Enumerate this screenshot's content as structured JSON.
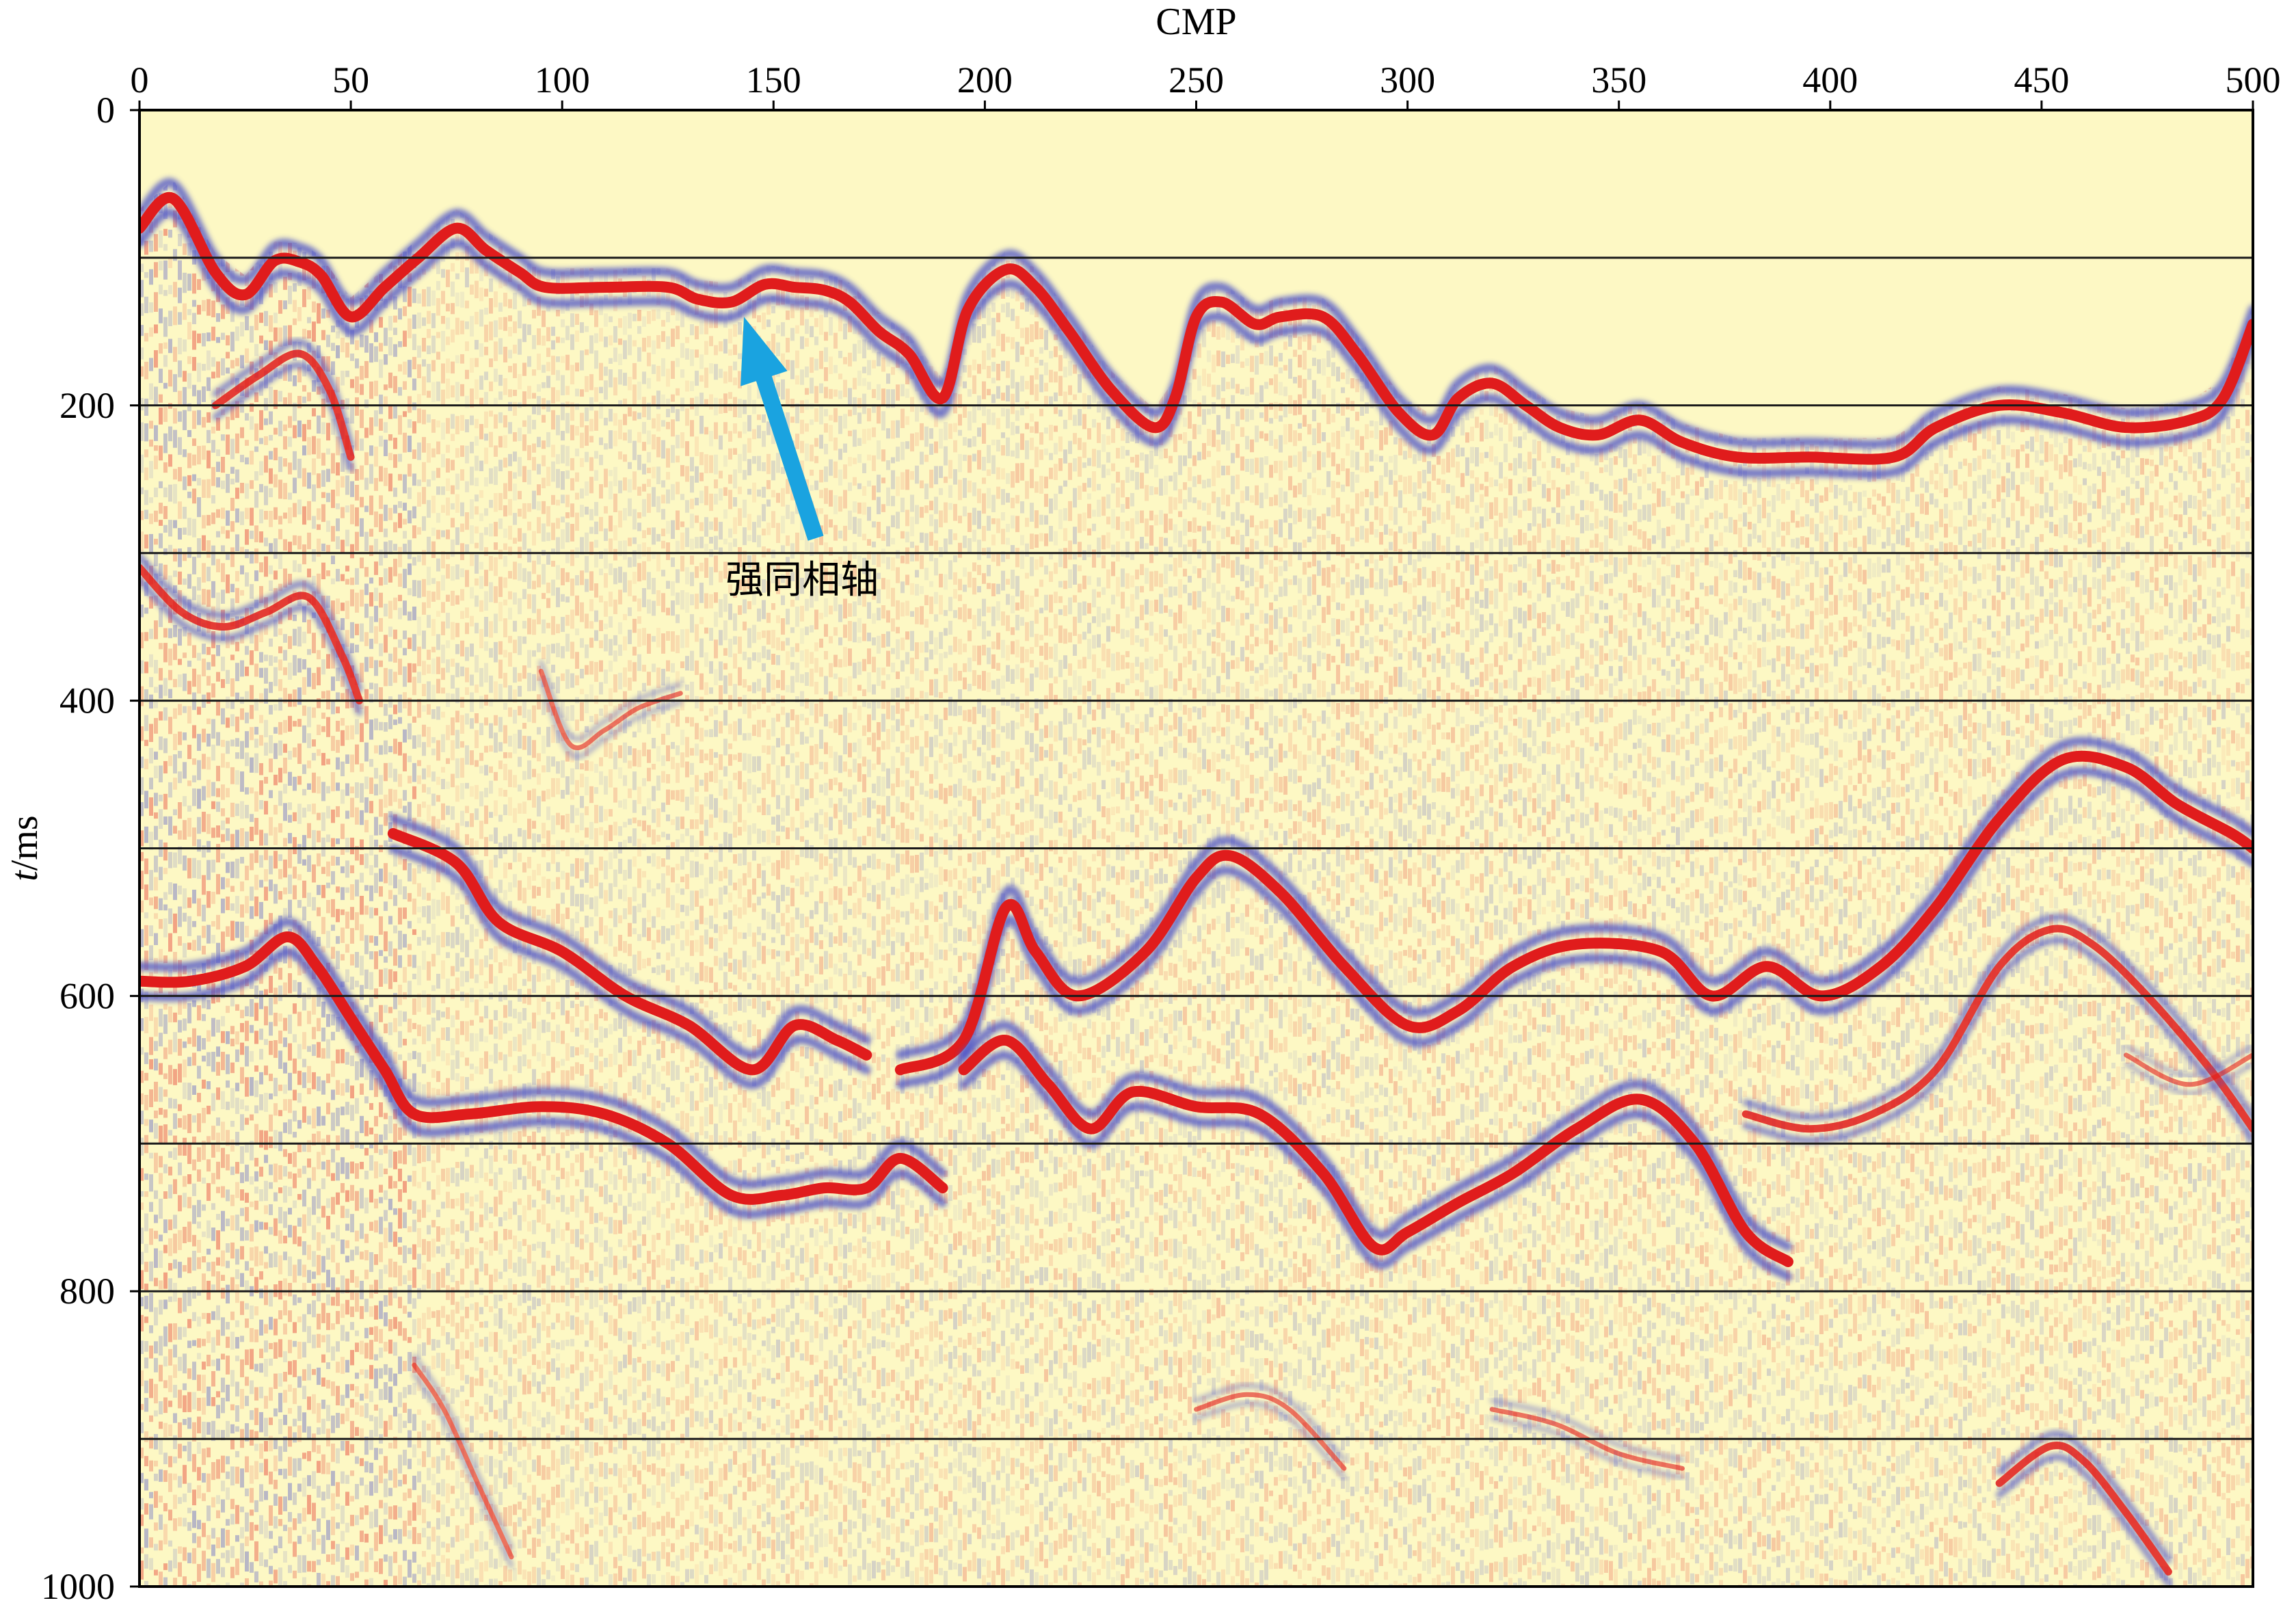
{
  "chart_data": {
    "type": "heatmap",
    "description_type": "seismic section (wiggle-density display)",
    "xlabel": "CMP",
    "ylabel": "t/ms",
    "ylabel_italic_part": "t",
    "ylabel_rest": "/ms",
    "xlim": [
      0,
      500
    ],
    "ylim": [
      0,
      1000
    ],
    "y_inverted": true,
    "x_axis_position": "top",
    "xticks": [
      0,
      50,
      100,
      150,
      200,
      250,
      300,
      350,
      400,
      450,
      500
    ],
    "yticks": [
      0,
      200,
      400,
      600,
      800,
      1000
    ],
    "grid": "horizontal lines every 100 ms",
    "grid_y": [
      100,
      200,
      300,
      400,
      500,
      600,
      700,
      800,
      900
    ],
    "colors": {
      "background": "#fdf8c4",
      "positive": "#e01c1c",
      "negative": "#4a4fc8",
      "grid": "#1a1a1a",
      "arrow": "#1aa3e0"
    },
    "annotation": {
      "text": "强同相轴",
      "arrow_tip": [
        143,
        140
      ],
      "arrow_tail": [
        160,
        290
      ]
    },
    "series": [
      {
        "role": "strong-event",
        "amplitude": "strong",
        "points": [
          [
            0,
            80
          ],
          [
            8,
            60
          ],
          [
            18,
            110
          ],
          [
            25,
            125
          ],
          [
            32,
            102
          ],
          [
            38,
            103
          ],
          [
            43,
            112
          ],
          [
            50,
            140
          ],
          [
            58,
            120
          ],
          [
            66,
            100
          ],
          [
            75,
            80
          ],
          [
            82,
            95
          ],
          [
            90,
            110
          ],
          [
            96,
            120
          ],
          [
            110,
            120
          ],
          [
            125,
            120
          ],
          [
            132,
            128
          ],
          [
            140,
            130
          ],
          [
            148,
            118
          ],
          [
            155,
            120
          ],
          [
            162,
            122
          ],
          [
            168,
            130
          ],
          [
            175,
            150
          ],
          [
            182,
            165
          ],
          [
            190,
            195
          ],
          [
            196,
            135
          ],
          [
            205,
            108
          ],
          [
            212,
            120
          ],
          [
            220,
            150
          ],
          [
            230,
            190
          ],
          [
            240,
            215
          ],
          [
            245,
            195
          ],
          [
            250,
            140
          ],
          [
            256,
            130
          ],
          [
            264,
            145
          ],
          [
            270,
            140
          ],
          [
            280,
            140
          ],
          [
            288,
            165
          ],
          [
            298,
            205
          ],
          [
            306,
            220
          ],
          [
            312,
            195
          ],
          [
            320,
            185
          ],
          [
            328,
            200
          ],
          [
            336,
            215
          ],
          [
            345,
            220
          ],
          [
            355,
            210
          ],
          [
            365,
            225
          ],
          [
            378,
            235
          ],
          [
            395,
            235
          ],
          [
            415,
            235
          ],
          [
            425,
            215
          ],
          [
            440,
            200
          ],
          [
            455,
            205
          ],
          [
            470,
            215
          ],
          [
            485,
            210
          ],
          [
            493,
            195
          ],
          [
            500,
            145
          ]
        ]
      },
      {
        "role": "secondary-event",
        "amplitude": "medium",
        "points": [
          [
            18,
            200
          ],
          [
            28,
            180
          ],
          [
            38,
            165
          ],
          [
            45,
            190
          ],
          [
            50,
            235
          ]
        ]
      },
      {
        "role": "event",
        "amplitude": "medium",
        "points": [
          [
            0,
            310
          ],
          [
            10,
            340
          ],
          [
            20,
            350
          ],
          [
            30,
            340
          ],
          [
            40,
            330
          ],
          [
            48,
            370
          ],
          [
            52,
            400
          ]
        ]
      },
      {
        "role": "event",
        "amplitude": "weak",
        "points": [
          [
            95,
            380
          ],
          [
            102,
            430
          ],
          [
            110,
            420
          ],
          [
            118,
            405
          ],
          [
            128,
            395
          ]
        ]
      },
      {
        "role": "event",
        "amplitude": "strong",
        "points": [
          [
            60,
            490
          ],
          [
            75,
            510
          ],
          [
            85,
            550
          ],
          [
            100,
            570
          ],
          [
            115,
            600
          ],
          [
            130,
            620
          ],
          [
            145,
            650
          ],
          [
            155,
            620
          ],
          [
            165,
            630
          ],
          [
            172,
            640
          ]
        ]
      },
      {
        "role": "event",
        "amplitude": "strong",
        "points": [
          [
            180,
            650
          ],
          [
            195,
            630
          ],
          [
            205,
            540
          ],
          [
            212,
            570
          ],
          [
            222,
            600
          ],
          [
            238,
            570
          ],
          [
            250,
            520
          ],
          [
            258,
            505
          ],
          [
            270,
            530
          ],
          [
            285,
            580
          ],
          [
            300,
            620
          ],
          [
            312,
            610
          ],
          [
            325,
            580
          ],
          [
            340,
            565
          ],
          [
            360,
            570
          ],
          [
            372,
            600
          ],
          [
            385,
            580
          ],
          [
            398,
            600
          ],
          [
            412,
            580
          ],
          [
            425,
            540
          ],
          [
            440,
            480
          ],
          [
            455,
            440
          ],
          [
            470,
            445
          ],
          [
            482,
            470
          ],
          [
            495,
            490
          ],
          [
            500,
            500
          ]
        ]
      },
      {
        "role": "event",
        "amplitude": "strong",
        "points": [
          [
            0,
            590
          ],
          [
            12,
            590
          ],
          [
            25,
            580
          ],
          [
            35,
            560
          ],
          [
            42,
            580
          ],
          [
            50,
            615
          ],
          [
            58,
            650
          ],
          [
            65,
            680
          ],
          [
            78,
            680
          ],
          [
            95,
            675
          ],
          [
            110,
            680
          ],
          [
            125,
            700
          ],
          [
            140,
            735
          ],
          [
            152,
            735
          ],
          [
            162,
            730
          ],
          [
            172,
            730
          ],
          [
            180,
            710
          ],
          [
            190,
            730
          ]
        ]
      },
      {
        "role": "event",
        "amplitude": "strong",
        "points": [
          [
            195,
            650
          ],
          [
            205,
            630
          ],
          [
            215,
            660
          ],
          [
            225,
            690
          ],
          [
            235,
            665
          ],
          [
            250,
            675
          ],
          [
            265,
            680
          ],
          [
            280,
            720
          ],
          [
            292,
            770
          ],
          [
            300,
            760
          ],
          [
            312,
            740
          ],
          [
            325,
            720
          ],
          [
            340,
            690
          ],
          [
            355,
            670
          ],
          [
            368,
            700
          ],
          [
            380,
            760
          ],
          [
            390,
            780
          ]
        ]
      },
      {
        "role": "event",
        "amplitude": "medium",
        "points": [
          [
            380,
            680
          ],
          [
            395,
            690
          ],
          [
            410,
            680
          ],
          [
            425,
            650
          ],
          [
            440,
            580
          ],
          [
            452,
            555
          ],
          [
            462,
            565
          ],
          [
            475,
            600
          ],
          [
            490,
            650
          ],
          [
            500,
            690
          ]
        ]
      },
      {
        "role": "event",
        "amplitude": "weak",
        "points": [
          [
            470,
            640
          ],
          [
            485,
            660
          ],
          [
            500,
            640
          ]
        ]
      },
      {
        "role": "event",
        "amplitude": "medium",
        "points": [
          [
            440,
            930
          ],
          [
            452,
            905
          ],
          [
            460,
            915
          ],
          [
            470,
            950
          ],
          [
            480,
            990
          ]
        ]
      },
      {
        "role": "event",
        "amplitude": "weak",
        "points": [
          [
            250,
            880
          ],
          [
            262,
            870
          ],
          [
            272,
            880
          ],
          [
            285,
            920
          ]
        ]
      },
      {
        "role": "event",
        "amplitude": "weak",
        "points": [
          [
            320,
            880
          ],
          [
            335,
            890
          ],
          [
            350,
            910
          ],
          [
            365,
            920
          ]
        ]
      },
      {
        "role": "event",
        "amplitude": "weak",
        "points": [
          [
            65,
            850
          ],
          [
            72,
            880
          ],
          [
            80,
            930
          ],
          [
            88,
            980
          ]
        ]
      }
    ]
  }
}
